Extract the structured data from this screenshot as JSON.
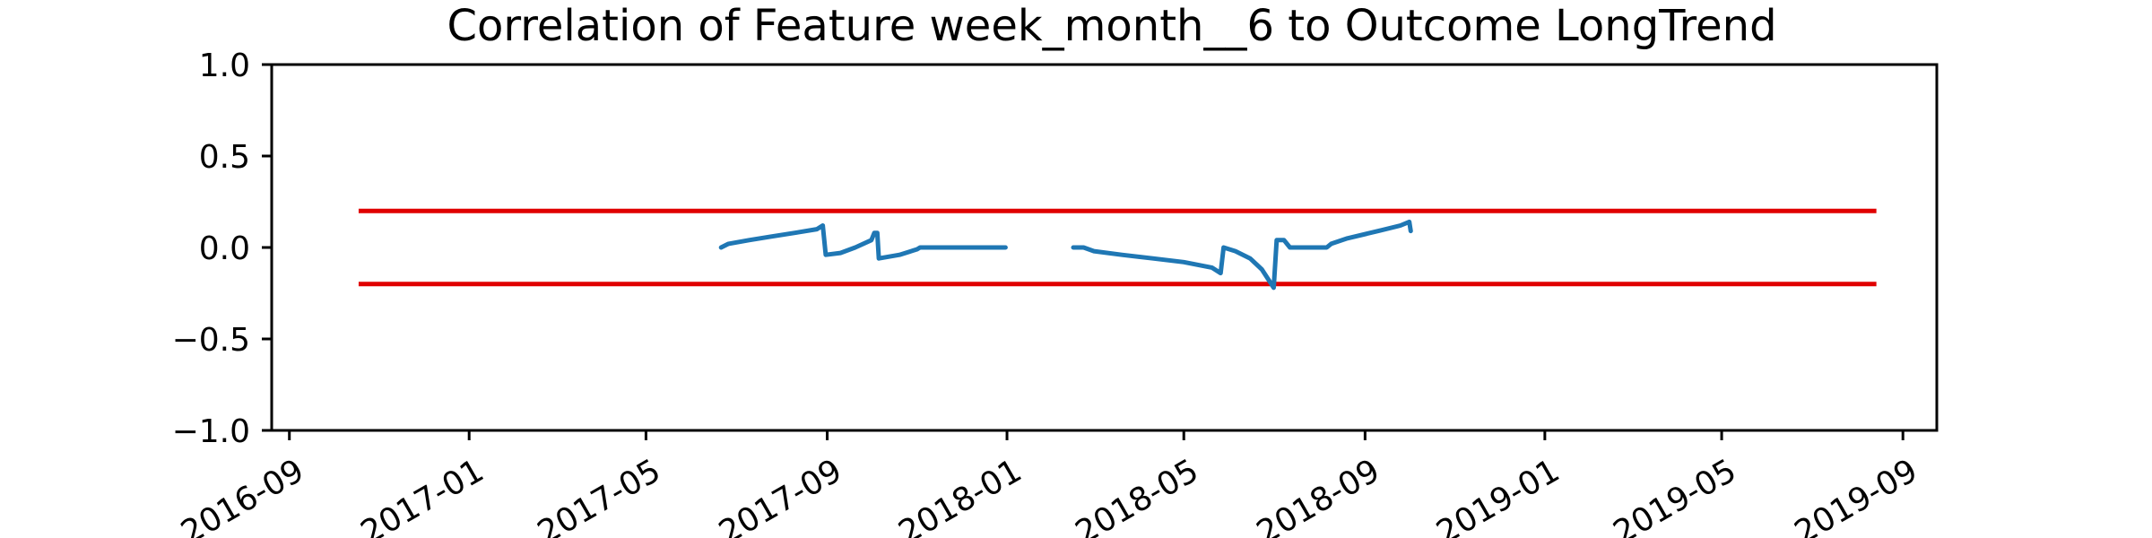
{
  "chart_data": {
    "type": "line",
    "title": "Correlation of Feature week_month__6 to Outcome LongTrend",
    "xlabel": "",
    "ylabel": "",
    "ylim": [
      -1.0,
      1.0
    ],
    "xlim": [
      "2016-08-20",
      "2019-09-24"
    ],
    "y_ticks": [
      1.0,
      0.5,
      0.0,
      -0.5,
      -1.0
    ],
    "y_tick_labels": [
      "1.0",
      "0.5",
      "0.0",
      "−0.5",
      "−1.0"
    ],
    "x_ticks": [
      "2016-09-01",
      "2017-01-01",
      "2017-05-01",
      "2017-09-01",
      "2018-01-01",
      "2018-05-01",
      "2018-09-01",
      "2019-01-01",
      "2019-05-01",
      "2019-09-01"
    ],
    "x_tick_labels": [
      "2016-09",
      "2017-01",
      "2017-05",
      "2017-09",
      "2018-01",
      "2018-05",
      "2018-09",
      "2019-01",
      "2019-05",
      "2019-09"
    ],
    "grid": false,
    "colors": {
      "series": "#1f77b4",
      "threshold": "#e00000"
    },
    "thresholds": [
      {
        "y": 0.2,
        "x": [
          "2016-10-18",
          "2019-08-14"
        ]
      },
      {
        "y": -0.2,
        "x": [
          "2016-10-18",
          "2019-08-14"
        ]
      }
    ],
    "series": [
      {
        "segments": [
          [
            [
              "2017-06-21",
              0.0
            ],
            [
              "2017-06-26",
              0.02
            ],
            [
              "2017-07-10",
              0.04
            ],
            [
              "2017-07-25",
              0.06
            ],
            [
              "2017-08-10",
              0.08
            ],
            [
              "2017-08-25",
              0.1
            ],
            [
              "2017-08-29",
              0.12
            ],
            [
              "2017-08-31",
              -0.04
            ],
            [
              "2017-09-10",
              -0.03
            ],
            [
              "2017-09-20",
              0.0
            ],
            [
              "2017-10-01",
              0.04
            ],
            [
              "2017-10-03",
              0.08
            ],
            [
              "2017-10-05",
              0.08
            ],
            [
              "2017-10-06",
              -0.06
            ],
            [
              "2017-10-20",
              -0.04
            ],
            [
              "2017-11-01",
              -0.01
            ],
            [
              "2017-11-03",
              0.0
            ],
            [
              "2017-12-31",
              0.0
            ]
          ],
          [
            [
              "2018-02-15",
              0.0
            ],
            [
              "2018-02-22",
              0.0
            ],
            [
              "2018-03-01",
              -0.02
            ],
            [
              "2018-03-20",
              -0.04
            ],
            [
              "2018-04-10",
              -0.06
            ],
            [
              "2018-05-01",
              -0.08
            ],
            [
              "2018-05-20",
              -0.11
            ],
            [
              "2018-05-26",
              -0.14
            ],
            [
              "2018-05-28",
              0.0
            ],
            [
              "2018-06-05",
              -0.02
            ],
            [
              "2018-06-15",
              -0.06
            ],
            [
              "2018-06-23",
              -0.12
            ],
            [
              "2018-07-01",
              -0.22
            ],
            [
              "2018-07-03",
              0.04
            ],
            [
              "2018-07-08",
              0.04
            ],
            [
              "2018-07-12",
              0.0
            ],
            [
              "2018-07-24",
              0.0
            ],
            [
              "2018-08-06",
              0.0
            ],
            [
              "2018-08-09",
              0.02
            ],
            [
              "2018-08-20",
              0.05
            ],
            [
              "2018-09-10",
              0.09
            ],
            [
              "2018-09-25",
              0.12
            ],
            [
              "2018-10-01",
              0.14
            ],
            [
              "2018-10-02",
              0.09
            ]
          ]
        ]
      }
    ]
  }
}
